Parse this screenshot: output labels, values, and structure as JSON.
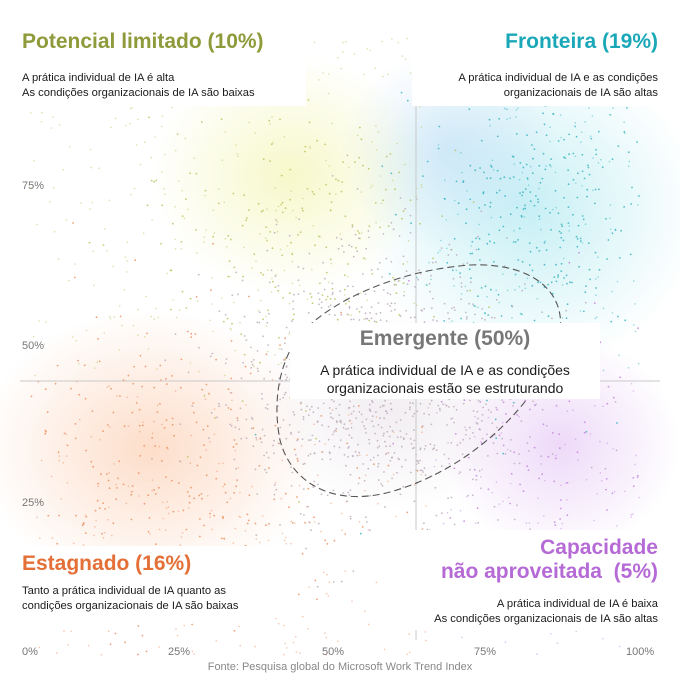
{
  "chart_data": {
    "type": "scatter",
    "x_ticks": [
      "0%",
      "25%",
      "50%",
      "75%",
      "100%"
    ],
    "y_ticks": [
      "25%",
      "50%",
      "75%"
    ],
    "xlim": [
      0,
      100
    ],
    "ylim": [
      0,
      100
    ],
    "threshold_x": 65,
    "threshold_y": 45,
    "quadrants": [
      {
        "id": "limited",
        "title": "Potencial limitado (10%)",
        "share": 10,
        "color": "#8f9a3a",
        "description": [
          "A prática individual de IA é alta",
          "As condições organizacionais de IA são baixas"
        ]
      },
      {
        "id": "frontier",
        "title": "Fronteira (19%)",
        "share": 19,
        "color": "#1aa8b8",
        "description": [
          "A prática individual de IA e as condições",
          "organizacionais de IA são altas"
        ]
      },
      {
        "id": "emergent",
        "title": "Emergente (50%)",
        "share": 50,
        "color": "#777777",
        "description": [
          "A prática individual de IA e as condições",
          "organizacionais estão se estruturando"
        ]
      },
      {
        "id": "stagnant",
        "title": "Estagnado (16%)",
        "share": 16,
        "color": "#e46f37",
        "description": [
          "Tanto a prática individual de IA quanto as",
          "condições organizacionais de IA são baixas"
        ]
      },
      {
        "id": "untapped",
        "title_lines": [
          "Capacidade",
          "não aproveitada  (5%)"
        ],
        "share": 5,
        "color": "#b56ad6",
        "description": [
          "A prática individual de IA é baixa",
          "As condições organizacionais de IA são altas"
        ]
      }
    ],
    "source": "Fonte: Pesquisa global do Microsoft Work Trend Index"
  }
}
